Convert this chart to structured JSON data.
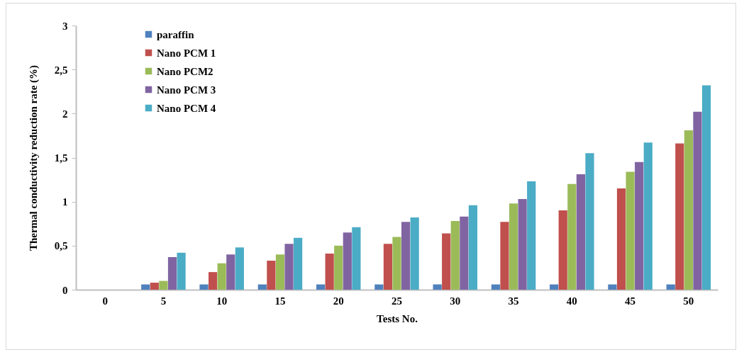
{
  "chart_data": {
    "type": "bar",
    "xlabel": "Tests No.",
    "ylabel": "Thermal conductivity reduction  rate (%)",
    "categories": [
      "0",
      "5",
      "10",
      "15",
      "20",
      "25",
      "30",
      "35",
      "40",
      "45",
      "50"
    ],
    "series": [
      {
        "name": "paraffin",
        "color": "#4f81bd",
        "values": [
          0,
          0.06,
          0.06,
          0.06,
          0.06,
          0.06,
          0.06,
          0.06,
          0.06,
          0.06,
          0.06
        ]
      },
      {
        "name": "Nano PCM 1",
        "color": "#c0504d",
        "values": [
          0,
          0.08,
          0.2,
          0.33,
          0.41,
          0.52,
          0.64,
          0.77,
          0.9,
          1.15,
          1.66
        ]
      },
      {
        "name": "Nano PCM2",
        "color": "#9bbb59",
        "values": [
          0,
          0.1,
          0.3,
          0.4,
          0.5,
          0.6,
          0.78,
          0.98,
          1.2,
          1.34,
          1.81
        ]
      },
      {
        "name": "Nano PCM 3",
        "color": "#8064a2",
        "values": [
          0,
          0.37,
          0.4,
          0.52,
          0.65,
          0.77,
          0.83,
          1.03,
          1.31,
          1.45,
          2.02
        ]
      },
      {
        "name": "Nano PCM 4",
        "color": "#4bacc6",
        "values": [
          0,
          0.42,
          0.48,
          0.59,
          0.71,
          0.82,
          0.96,
          1.23,
          1.55,
          1.67,
          2.32
        ]
      }
    ],
    "ylim": [
      0,
      3
    ],
    "yticks": [
      0,
      {
        "value": 0.5,
        "label": "0,5"
      },
      1,
      {
        "value": 1.5,
        "label": "1,5"
      },
      2,
      {
        "value": 2.5,
        "label": "2,5"
      },
      3
    ],
    "grid": false,
    "legend": "top left"
  }
}
